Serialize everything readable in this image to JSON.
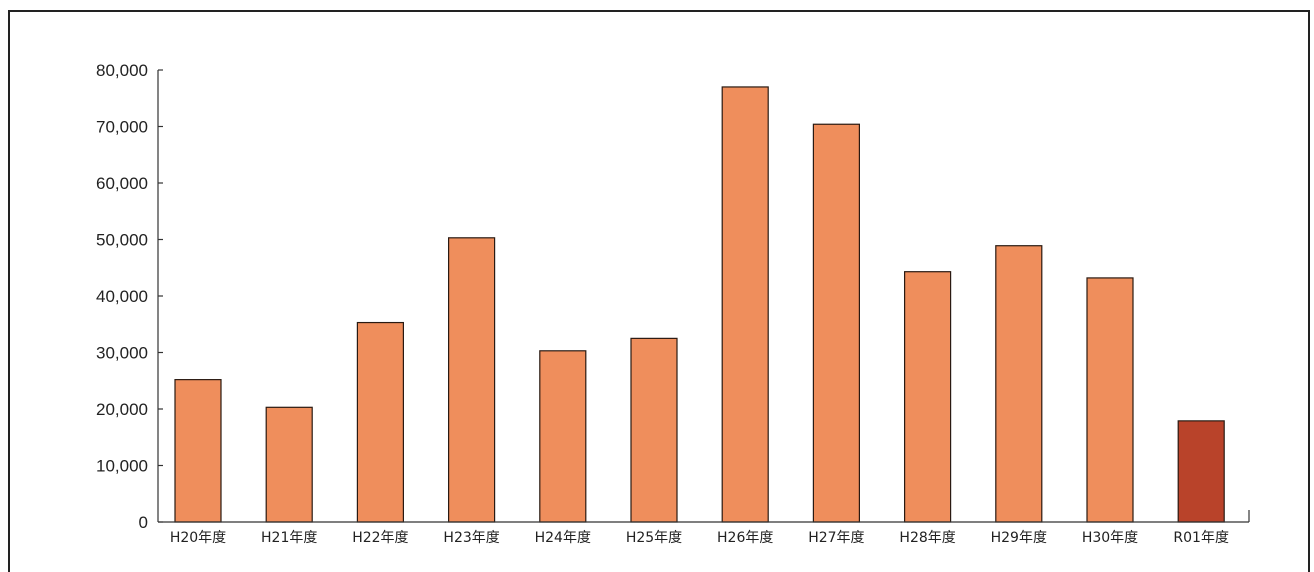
{
  "chart_data": {
    "type": "bar",
    "categories": [
      "H20年度",
      "H21年度",
      "H22年度",
      "H23年度",
      "H24年度",
      "H25年度",
      "H26年度",
      "H27年度",
      "H28年度",
      "H29年度",
      "H30年度",
      "R01年度"
    ],
    "values": [
      25200,
      20300,
      35300,
      50300,
      30300,
      32500,
      77000,
      70400,
      44300,
      48900,
      43200,
      17900
    ],
    "ylim": [
      0,
      80000
    ],
    "yticks": [
      0,
      10000,
      20000,
      30000,
      40000,
      50000,
      60000,
      70000,
      80000
    ],
    "ytick_labels": [
      "0",
      "10,000",
      "20,000",
      "30,000",
      "40,000",
      "50,000",
      "60,000",
      "70,000",
      "80,000"
    ],
    "grid": false,
    "legend": "none",
    "colors": {
      "bar": "#ef8e5c",
      "highlight": "#b9432a",
      "axis": "#333333"
    },
    "highlight_index": 11
  }
}
